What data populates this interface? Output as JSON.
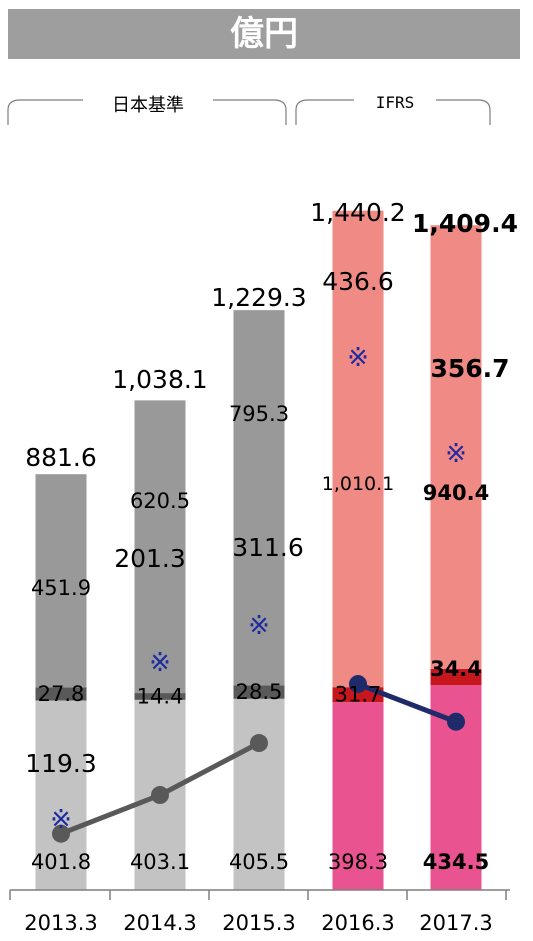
{
  "unit": "億円",
  "sections": [
    {
      "label": "日本基準"
    },
    {
      "label": "IFRS"
    }
  ],
  "mark": "※",
  "colors": {
    "bottom_japan": "#c3c3c3",
    "mid_japan": "#595959",
    "top_japan": "#999999",
    "bottom_ifrs": "#e95390",
    "mid_ifrs": "#c8161d",
    "top_ifrs": "#f08a84",
    "line_japan": "#595959",
    "line_ifrs": "#1f2a6b",
    "mark": "#1f2aa0"
  },
  "chart_data": {
    "type": "bar",
    "stacked": true,
    "categories": [
      "2013.3",
      "2014.3",
      "2015.3",
      "2016.3",
      "2017.3"
    ],
    "totals": [
      "881.6",
      "1,038.1",
      "1,229.3",
      "1,440.2",
      "1,409.4"
    ],
    "series": [
      {
        "values": [
          401.8,
          403.1,
          405.5,
          398.3,
          434.5
        ],
        "labels": [
          "401.8",
          "403.1",
          "405.5",
          "398.3",
          "434.5"
        ]
      },
      {
        "values": [
          27.8,
          14.4,
          28.5,
          31.7,
          34.4
        ],
        "labels": [
          "27.8",
          "14.4",
          "28.5",
          "31.7",
          "34.4"
        ]
      },
      {
        "values": [
          451.9,
          620.5,
          795.3,
          1010.1,
          940.4
        ],
        "labels": [
          "451.9",
          "620.5",
          "795.3",
          "1,010.1",
          "940.4"
        ]
      }
    ],
    "line": {
      "values": [
        119.3,
        201.3,
        311.6,
        436.6,
        356.7
      ],
      "labels": [
        "119.3",
        "201.3",
        "311.6",
        "436.6",
        "356.7"
      ],
      "marks": [
        "※",
        "※",
        "※",
        "※",
        "※"
      ]
    },
    "ylim": [
      0,
      1500
    ],
    "grid": false,
    "legend": "none"
  }
}
